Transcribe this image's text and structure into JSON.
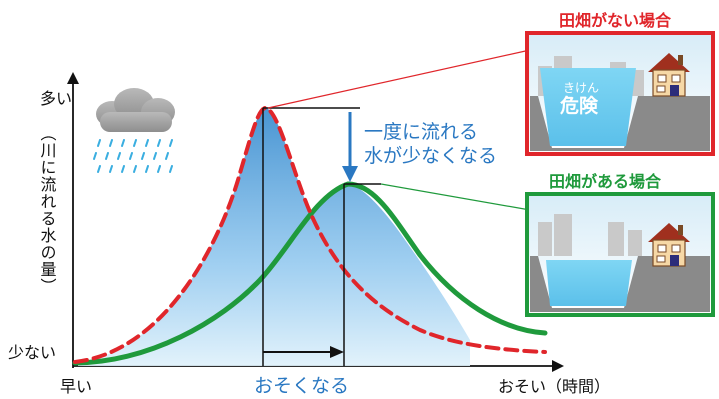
{
  "axis": {
    "y_top": "多い",
    "y_bottom": "少ない",
    "y_title": "（川に流れる水の量）",
    "x_left": "早い",
    "x_right": "おそい（時間）"
  },
  "annotations": {
    "peak_drop_line1": "一度に流れる",
    "peak_drop_line2": "水が少なくなる",
    "delay": "おそくなる"
  },
  "panels": {
    "without": {
      "title": "田畑がない場合",
      "badge_small": "きけん",
      "badge_big": "危険",
      "color": "#e0262b"
    },
    "with": {
      "title": "田畑がある場合",
      "color": "#1f9a3c"
    }
  },
  "colors": {
    "red_curve": "#e0262b",
    "green_curve": "#1f9a3c",
    "blue_text": "#2a78c2",
    "water": "#5fc4ec",
    "rain": "#3aaee0"
  },
  "icons": [
    "rain-cloud-icon",
    "house-icon"
  ]
}
